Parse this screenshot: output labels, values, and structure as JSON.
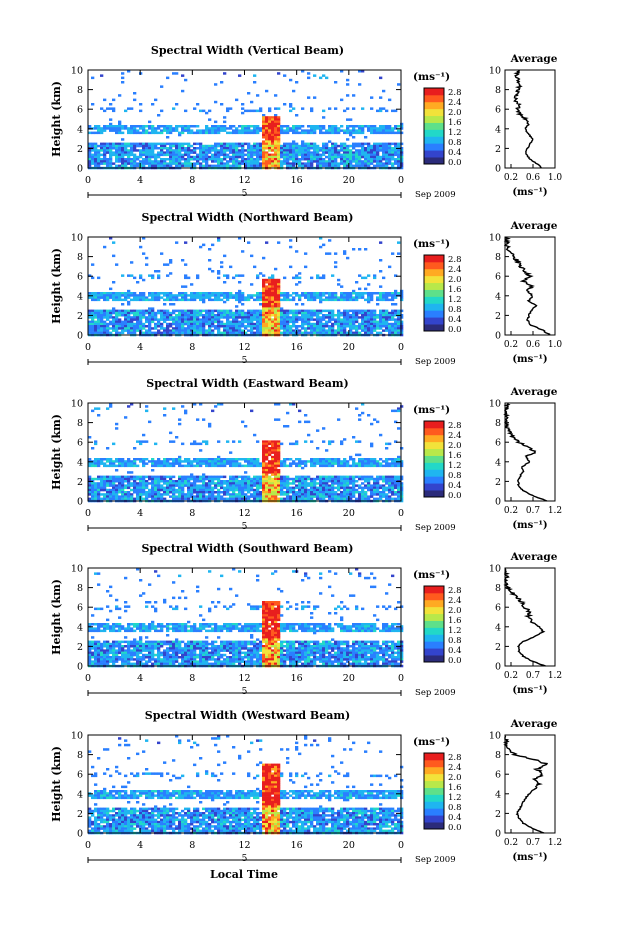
{
  "figure": {
    "x_axis_label": "Local Time",
    "date_label": "Sep 2009",
    "day_label": "5",
    "x_ticks": [
      "0",
      "4",
      "8",
      "12",
      "16",
      "20",
      "0"
    ],
    "y_ticks": [
      "0",
      "2",
      "4",
      "6",
      "8",
      "10"
    ],
    "y_label": "Height (km)",
    "unit_label": "(ms⁻¹)",
    "colorbar_ticks": [
      "0.0",
      "0.4",
      "0.8",
      "1.2",
      "1.6",
      "2.0",
      "2.4",
      "2.8"
    ],
    "colorbar_colors": [
      "#2b2b7a",
      "#3344cc",
      "#2a7fff",
      "#1fb5f0",
      "#22d8c8",
      "#5ee08a",
      "#b8e84a",
      "#f2e23a",
      "#ffaa22",
      "#ff5a1e",
      "#e81e1e"
    ],
    "avg_title": "Average",
    "avg_ylabel_ticks": [
      "0",
      "2",
      "4",
      "6",
      "8",
      "10"
    ]
  },
  "chart_data": [
    {
      "type": "heatmap",
      "title": "Spectral Width (Vertical Beam)",
      "xlim": [
        0,
        24
      ],
      "ylim": [
        0,
        10
      ],
      "colorbar_range": [
        0.0,
        2.8
      ],
      "average": {
        "title": "Average",
        "xlim": [
          0.0,
          1.0
        ],
        "x_ticks": [
          "0.2",
          "0.6",
          "1.0"
        ],
        "xlabel": "(ms⁻¹)",
        "profile_x": [
          0.74,
          0.62,
          0.48,
          0.42,
          0.45,
          0.5,
          0.56,
          0.46,
          0.4,
          0.48,
          0.42,
          0.3,
          0.24,
          0.28,
          0.2,
          0.22,
          0.26,
          0.3,
          0.26,
          0.22,
          0.28
        ],
        "profile_y": [
          0,
          0.5,
          1.0,
          1.5,
          2.0,
          2.5,
          3.0,
          3.5,
          4.0,
          4.5,
          5.0,
          5.5,
          6.0,
          6.5,
          7.0,
          7.5,
          8.0,
          8.5,
          9.0,
          9.5,
          10.0
        ]
      }
    },
    {
      "type": "heatmap",
      "title": "Spectral Width (Northward Beam)",
      "xlim": [
        0,
        24
      ],
      "ylim": [
        0,
        10
      ],
      "colorbar_range": [
        0.0,
        2.8
      ],
      "average": {
        "title": "Average",
        "xlim": [
          0.2,
          1.0
        ],
        "x_ticks": [
          "0.2",
          "0.6",
          "1.0"
        ],
        "xlabel": "(ms⁻¹)",
        "profile_x": [
          0.92,
          0.8,
          0.62,
          0.56,
          0.58,
          0.62,
          0.7,
          0.58,
          0.64,
          0.56,
          0.62,
          0.5,
          0.6,
          0.52,
          0.46,
          0.4,
          0.34,
          0.28,
          0.24,
          0.22,
          0.22
        ],
        "profile_y": [
          0,
          0.5,
          1.0,
          1.5,
          2.0,
          2.5,
          3.0,
          3.5,
          4.0,
          4.5,
          5.0,
          5.5,
          6.0,
          6.5,
          7.0,
          7.5,
          8.0,
          8.5,
          9.0,
          9.5,
          10.0
        ]
      }
    },
    {
      "type": "heatmap",
      "title": "Spectral Width (Eastward Beam)",
      "xlim": [
        0,
        24
      ],
      "ylim": [
        0,
        10
      ],
      "colorbar_range": [
        0.0,
        2.8
      ],
      "average": {
        "title": "Average",
        "xlim": [
          0.2,
          1.2
        ],
        "x_ticks": [
          "0.2",
          "0.7",
          "1.2"
        ],
        "xlabel": "(ms⁻¹)",
        "profile_x": [
          1.05,
          0.78,
          0.58,
          0.48,
          0.46,
          0.5,
          0.56,
          0.54,
          0.7,
          0.62,
          0.8,
          0.66,
          0.48,
          0.36,
          0.3,
          0.24,
          0.22,
          0.24,
          0.22,
          0.26,
          0.24
        ],
        "profile_y": [
          0,
          0.5,
          1.0,
          1.5,
          2.0,
          2.5,
          3.0,
          3.5,
          4.0,
          4.5,
          5.0,
          5.5,
          6.0,
          6.5,
          7.0,
          7.5,
          8.0,
          8.5,
          9.0,
          9.5,
          10.0
        ]
      }
    },
    {
      "type": "heatmap",
      "title": "Spectral Width (Southward Beam)",
      "xlim": [
        0,
        24
      ],
      "ylim": [
        0,
        10
      ],
      "colorbar_range": [
        0.0,
        2.8
      ],
      "average": {
        "title": "Average",
        "xlim": [
          0.2,
          1.2
        ],
        "x_ticks": [
          "0.2",
          "0.7",
          "1.2"
        ],
        "xlabel": "(ms⁻¹)",
        "profile_x": [
          1.0,
          0.74,
          0.56,
          0.48,
          0.46,
          0.56,
          0.8,
          0.96,
          0.88,
          0.74,
          0.66,
          0.7,
          0.6,
          0.54,
          0.44,
          0.34,
          0.26,
          0.22,
          0.24,
          0.22,
          0.22
        ],
        "profile_y": [
          0,
          0.5,
          1.0,
          1.5,
          2.0,
          2.5,
          3.0,
          3.5,
          4.0,
          4.5,
          5.0,
          5.5,
          6.0,
          6.5,
          7.0,
          7.5,
          8.0,
          8.5,
          9.0,
          9.5,
          10.0
        ]
      }
    },
    {
      "type": "heatmap",
      "title": "Spectral Width (Westward Beam)",
      "xlim": [
        0,
        24
      ],
      "ylim": [
        0,
        10
      ],
      "colorbar_range": [
        0.0,
        2.8
      ],
      "average": {
        "title": "Average",
        "xlim": [
          0.2,
          1.2
        ],
        "x_ticks": [
          "0.2",
          "0.7",
          "1.2"
        ],
        "xlabel": "(ms⁻¹)",
        "profile_x": [
          0.98,
          0.74,
          0.56,
          0.48,
          0.44,
          0.5,
          0.54,
          0.6,
          0.68,
          0.78,
          0.88,
          0.8,
          0.96,
          0.84,
          1.05,
          0.78,
          0.4,
          0.3,
          0.24,
          0.22,
          0.22
        ],
        "profile_y": [
          0,
          0.5,
          1.0,
          1.5,
          2.0,
          2.5,
          3.0,
          3.5,
          4.0,
          4.5,
          5.0,
          5.5,
          6.0,
          6.5,
          7.0,
          7.5,
          8.0,
          8.5,
          9.0,
          9.5,
          10.0
        ]
      }
    }
  ]
}
